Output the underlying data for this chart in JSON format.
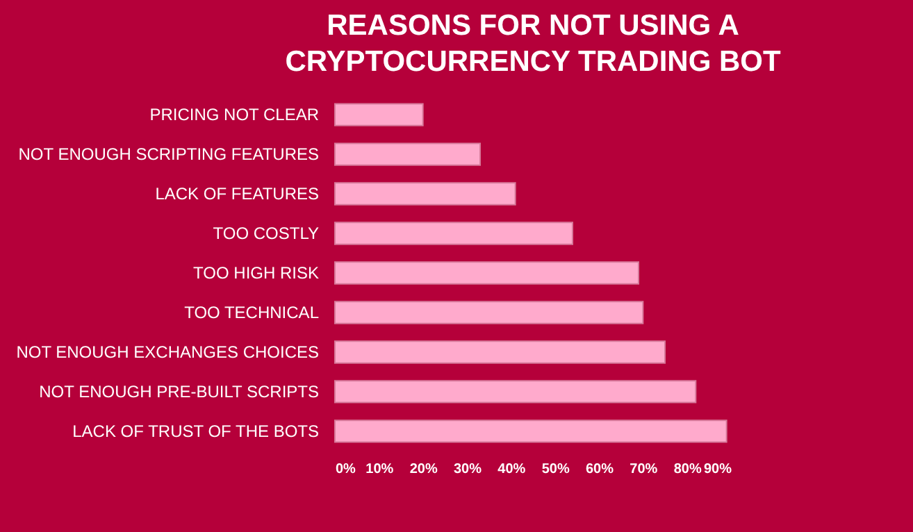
{
  "chart_data": {
    "type": "bar",
    "orientation": "horizontal",
    "title": "REASONS FOR NOT USING A\nCRYPTOCURRENCY TRADING BOT",
    "categories": [
      "PRICING NOT CLEAR",
      "NOT ENOUGH SCRIPTING FEATURES",
      "LACK OF FEATURES",
      "TOO COSTLY",
      "TOO HIGH RISK",
      "TOO TECHNICAL",
      "NOT ENOUGH EXCHANGES CHOICES",
      "NOT ENOUGH PRE-BUILT SCRIPTS",
      "LACK OF TRUST OF THE BOTS"
    ],
    "values": [
      20,
      33,
      41,
      54,
      69,
      70,
      75,
      82,
      89
    ],
    "color": "#ffaacc",
    "xlim": [
      0,
      90
    ],
    "xticks": [
      {
        "value": 0,
        "label": "0%"
      },
      {
        "value": 10,
        "label": "10%"
      },
      {
        "value": 20,
        "label": "20%"
      },
      {
        "value": 30,
        "label": "30%"
      },
      {
        "value": 40,
        "label": "40%"
      },
      {
        "value": 50,
        "label": "50%"
      },
      {
        "value": 60,
        "label": "60%"
      },
      {
        "value": 70,
        "label": "70%"
      },
      {
        "value": 80,
        "label": "80%"
      },
      {
        "value": 90,
        "label": "90%"
      }
    ]
  }
}
